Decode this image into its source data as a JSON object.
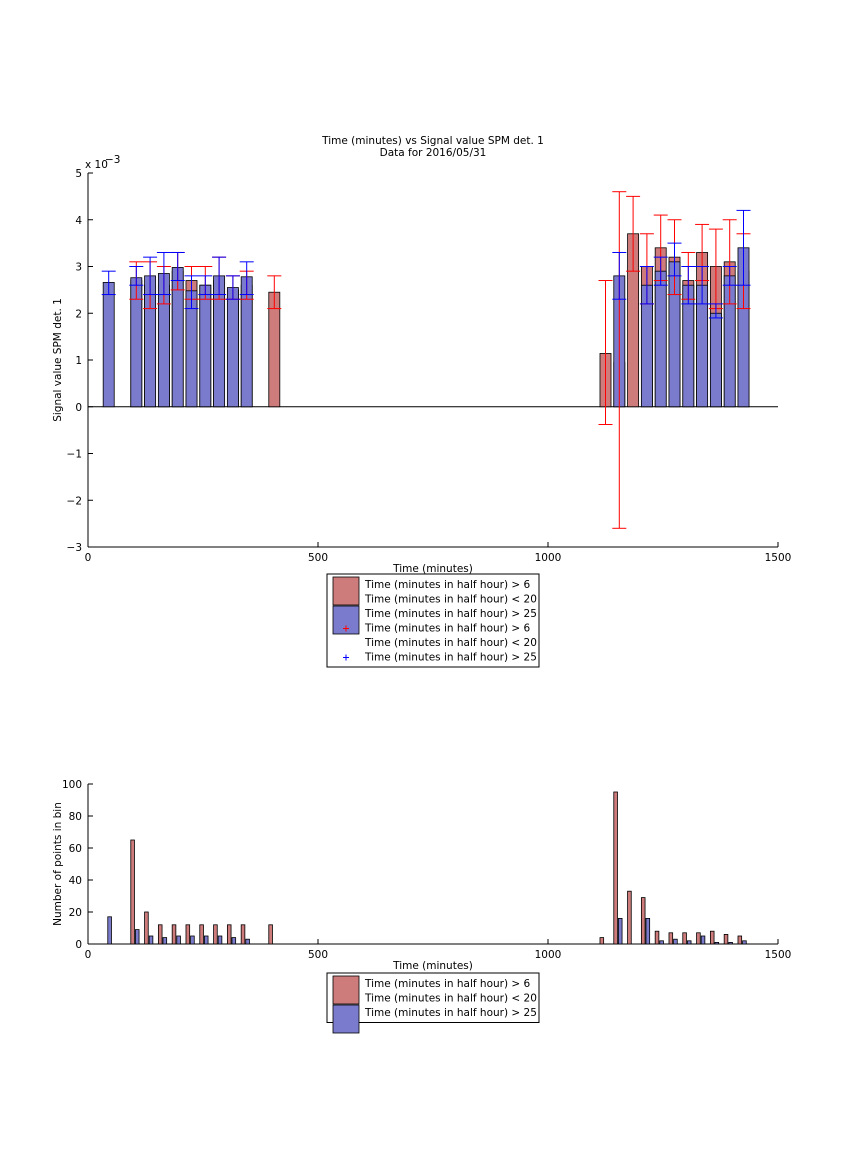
{
  "chart_data": [
    {
      "type": "bar",
      "title": [
        "Time (minutes) vs Signal value SPM det. 1",
        "Data for 2016/05/31"
      ],
      "xlabel": "Time (minutes)",
      "ylabel": "Signal value SPM det. 1",
      "xlim": [
        0,
        1500
      ],
      "ylim": [
        -0.003,
        0.005
      ],
      "xticks": [
        0,
        500,
        1000,
        1500
      ],
      "yticks": [
        -3,
        -2,
        -1,
        0,
        1,
        2,
        3,
        4,
        5
      ],
      "yticklabels": [
        "−3",
        "−2",
        "−1",
        "0",
        "1",
        "2",
        "3",
        "4",
        "5"
      ],
      "y_exponent_label": "x 10",
      "y_exponent": "−3",
      "grid": false,
      "legend_position": "below",
      "legend": [
        {
          "label": "Time (minutes in half hour) > 6",
          "marker": "patch",
          "color": "#cd7b7b"
        },
        {
          "label": "Time (minutes in half hour) < 20",
          "marker": "none",
          "color": "#cd7b7b"
        },
        {
          "label": "Time (minutes in half hour) > 25",
          "marker": "patch",
          "color": "#7b7bcd"
        },
        {
          "label": "Time (minutes in half hour) > 6",
          "marker": "plus",
          "color": "#ff0000"
        },
        {
          "label": "Time (minutes in half hour) < 20",
          "marker": "none",
          "color": "#ff0000"
        },
        {
          "label": "Time (minutes in half hour) > 25",
          "marker": "plus",
          "color": "#0000ff"
        }
      ],
      "series": [
        {
          "color": "#cd7b7b",
          "error_color": "#ff0000",
          "x": [
            105,
            135,
            165,
            195,
            225,
            255,
            285,
            315,
            345,
            405,
            1125,
            1155,
            1185,
            1215,
            1245,
            1275,
            1305,
            1335,
            1365,
            1395,
            1425
          ],
          "values": [
            0.0027,
            0.0026,
            0.0026,
            0.0029,
            0.0027,
            0.0026,
            0.0027,
            0.0025,
            0.0026,
            0.00245,
            0.00114,
            0.00095,
            0.0037,
            0.003,
            0.0034,
            0.0032,
            0.0027,
            0.0033,
            0.003,
            0.0031,
            0.0029
          ],
          "err_low": [
            0.0023,
            0.0021,
            0.0022,
            0.0025,
            0.0023,
            0.0023,
            0.0023,
            0.0023,
            0.0023,
            0.0021,
            -0.00038,
            -0.0026,
            0.0029,
            0.0022,
            0.0027,
            0.0024,
            0.0023,
            0.0027,
            0.0021,
            0.0022,
            0.0021
          ],
          "err_high": [
            0.0031,
            0.0031,
            0.003,
            0.0033,
            0.003,
            0.003,
            0.0032,
            0.0028,
            0.0029,
            0.0028,
            0.0027,
            0.0046,
            0.0045,
            0.0037,
            0.0041,
            0.004,
            0.0033,
            0.0039,
            0.0038,
            0.004,
            0.0037
          ]
        },
        {
          "color": "#7b7bcd",
          "error_color": "#0000ff",
          "x": [
            45,
            105,
            135,
            165,
            195,
            225,
            255,
            285,
            315,
            345,
            1155,
            1215,
            1245,
            1275,
            1305,
            1335,
            1365,
            1395,
            1425
          ],
          "values": [
            0.00266,
            0.00276,
            0.0028,
            0.00285,
            0.00298,
            0.00248,
            0.0026,
            0.0028,
            0.00255,
            0.00278,
            0.0028,
            0.0026,
            0.0029,
            0.0031,
            0.0026,
            0.0026,
            0.002,
            0.0028,
            0.0034
          ],
          "err_low": [
            0.0024,
            0.0026,
            0.0024,
            0.0024,
            0.0027,
            0.0021,
            0.0024,
            0.0024,
            0.0023,
            0.0024,
            0.0023,
            0.0022,
            0.0026,
            0.0028,
            0.0022,
            0.0022,
            0.0019,
            0.0026,
            0.0026
          ],
          "err_high": [
            0.0029,
            0.003,
            0.0032,
            0.0033,
            0.0033,
            0.0028,
            0.0028,
            0.0032,
            0.0028,
            0.0031,
            0.0033,
            0.003,
            0.0032,
            0.0035,
            0.003,
            0.003,
            0.0022,
            0.003,
            0.0042
          ]
        }
      ]
    },
    {
      "type": "bar",
      "title": "",
      "xlabel": "Time (minutes)",
      "ylabel": "Number of points in bin",
      "xlim": [
        0,
        1500
      ],
      "ylim": [
        0,
        100
      ],
      "xticks": [
        0,
        500,
        1000,
        1500
      ],
      "yticks": [
        0,
        20,
        40,
        60,
        80,
        100
      ],
      "grid": false,
      "legend_position": "below",
      "legend": [
        {
          "label": "Time (minutes in half hour) > 6",
          "marker": "patch",
          "color": "#cd7b7b"
        },
        {
          "label": "Time (minutes in half hour) < 20",
          "marker": "none",
          "color": "#cd7b7b"
        },
        {
          "label": "Time (minutes in half hour) > 25",
          "marker": "patch",
          "color": "#7b7bcd"
        }
      ],
      "series": [
        {
          "color": "#cd7b7b",
          "x": [
            97,
            127,
            157,
            187,
            217,
            247,
            277,
            307,
            337,
            397,
            1117,
            1147,
            1177,
            1207,
            1237,
            1267,
            1297,
            1327,
            1357,
            1387,
            1417
          ],
          "values": [
            65,
            20,
            12,
            12,
            12,
            12,
            12,
            12,
            12,
            12,
            4,
            95,
            33,
            29,
            8,
            7,
            7,
            7,
            8,
            6,
            5
          ]
        },
        {
          "color": "#7b7bcd",
          "x": [
            47,
            107,
            137,
            167,
            197,
            227,
            257,
            287,
            317,
            347,
            1157,
            1217,
            1247,
            1277,
            1307,
            1337,
            1367,
            1397,
            1427
          ],
          "values": [
            17,
            9,
            5,
            4,
            5,
            5,
            5,
            5,
            4,
            3,
            16,
            16,
            2,
            3,
            2,
            5,
            1,
            1,
            2
          ]
        }
      ]
    }
  ]
}
